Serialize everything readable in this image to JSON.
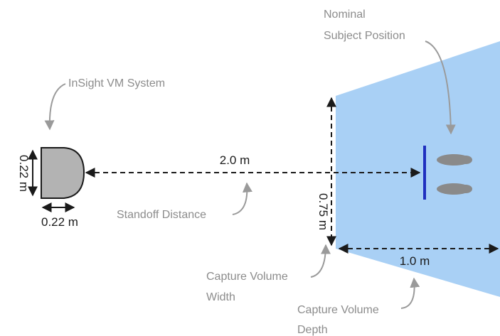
{
  "diagram": {
    "device_label": "InSight VM System",
    "subject_label_line1": "Nominal",
    "subject_label_line2": "Subject Position",
    "standoff_value": "2.0 m",
    "standoff_label": "Standoff Distance",
    "device_height": "0.22 m",
    "device_width": "0.22 m",
    "volume_height": "0.75 m",
    "volume_depth_value": "1.0 m",
    "volume_width_label_line1": "Capture Volume",
    "volume_width_label_line2": "Width",
    "volume_depth_label_line1": "Capture Volume",
    "volume_depth_label_line2": "Depth"
  },
  "colors": {
    "capture_volume": "#a9d0f5",
    "device_fill": "#b3b3b3",
    "subject_line": "#1f2fbf",
    "footprint": "#8a8a8a",
    "dimension_line": "#1a1a1a",
    "callout_arrow": "#9a9a9a",
    "text_dim": "#1a1a1a",
    "text_callout": "#8c8c8c"
  }
}
